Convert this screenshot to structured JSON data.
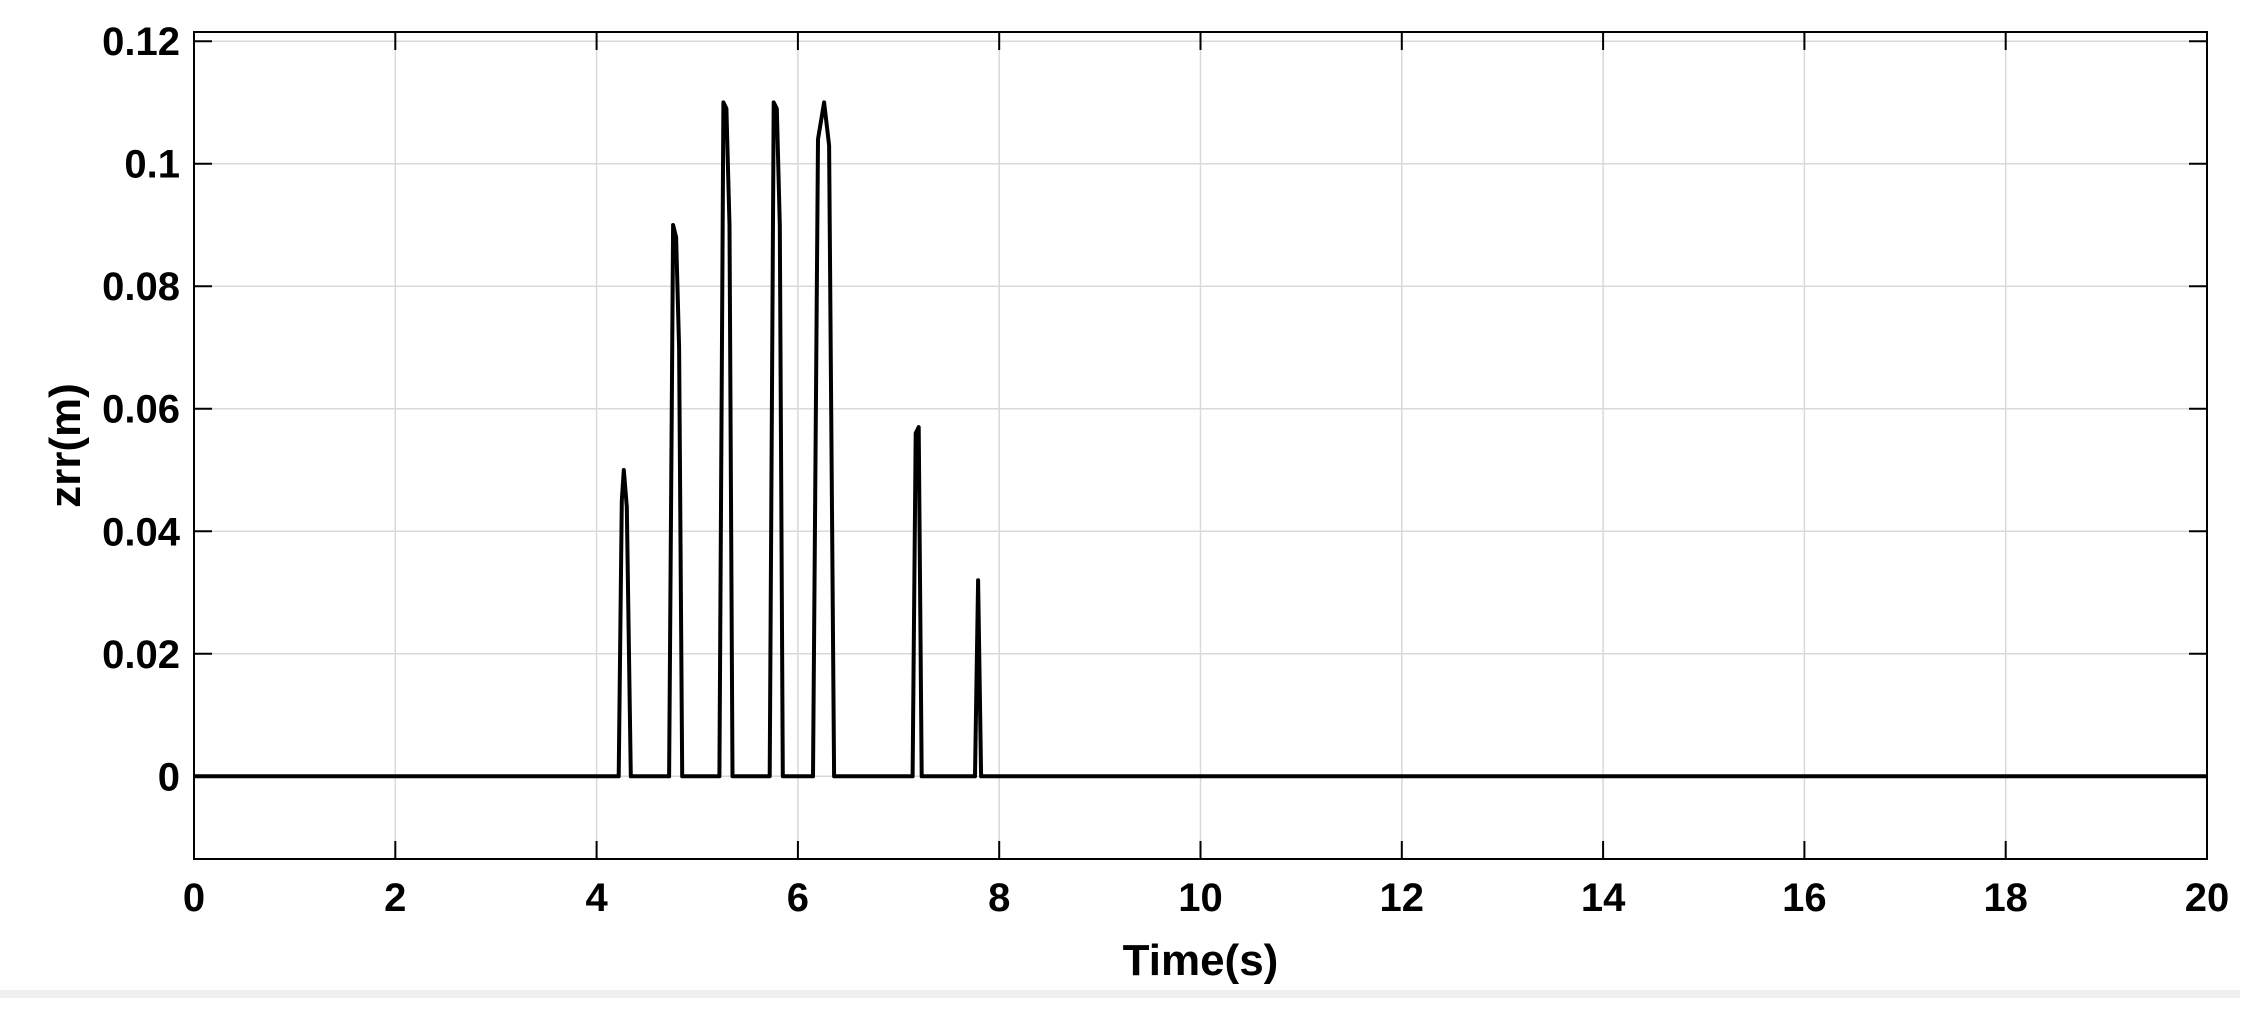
{
  "chart_data": {
    "type": "line",
    "title": "",
    "xlabel": "Time(s)",
    "ylabel": "zrr(m)",
    "xlim": [
      0,
      20
    ],
    "ylim": [
      -0.0135,
      0.1215
    ],
    "grid": true,
    "x_ticks": [
      0,
      2,
      4,
      6,
      8,
      10,
      12,
      14,
      16,
      18,
      20
    ],
    "x_tick_labels": [
      "0",
      "2",
      "4",
      "6",
      "8",
      "10",
      "12",
      "14",
      "16",
      "18",
      "20"
    ],
    "y_ticks": [
      0,
      0.02,
      0.04,
      0.06,
      0.08,
      0.1,
      0.12
    ],
    "y_tick_labels": [
      "0",
      "0.02",
      "0.04",
      "0.06",
      "0.08",
      "0.1",
      "0.12"
    ],
    "line_color": "#000000",
    "series": [
      {
        "x": [
          0,
          4.22,
          4.25,
          4.27,
          4.3,
          4.34,
          4.72,
          4.76,
          4.79,
          4.82,
          4.85,
          5.22,
          5.26,
          5.29,
          5.32,
          5.35,
          5.72,
          5.76,
          5.79,
          5.82,
          5.85,
          6.15,
          6.2,
          6.26,
          6.31,
          6.36,
          7.14,
          7.17,
          7.2,
          7.23,
          7.76,
          7.79,
          7.82,
          20
        ],
        "y": [
          0,
          0,
          0.045,
          0.05,
          0.044,
          0,
          0,
          0.09,
          0.088,
          0.07,
          0,
          0,
          0.11,
          0.109,
          0.09,
          0,
          0,
          0.11,
          0.109,
          0.09,
          0,
          0,
          0.104,
          0.11,
          0.103,
          0,
          0,
          0.056,
          0.057,
          0,
          0,
          0.032,
          0,
          0
        ]
      }
    ]
  }
}
